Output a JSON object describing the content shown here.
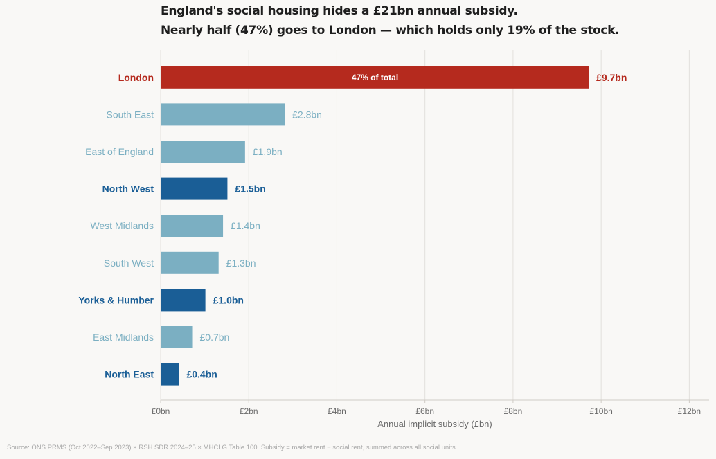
{
  "title": "England's social housing hides a £21bn annual subsidy.",
  "subtitle": "Nearly half (47%) goes to London — which holds only 19% of the stock.",
  "source": "Source: ONS PRMS (Oct 2022–Sep 2023) × RSH SDR 2024–25 × MHCLG Table 100. Subsidy = market rent − social rent, summed across all social units.",
  "colors": {
    "highlight_red": "#b52a1e",
    "highlight_blue": "#1a5e96",
    "muted": "#7bafc2",
    "grid": "#e2e0dc",
    "axis_text": "#6a6a6a"
  },
  "chart_data": {
    "type": "bar",
    "orientation": "horizontal",
    "categories": [
      "London",
      "South East",
      "East of England",
      "North West",
      "West Midlands",
      "South West",
      "Yorks & Humber",
      "East Midlands",
      "North East"
    ],
    "values": [
      9.7,
      2.8,
      1.9,
      1.5,
      1.4,
      1.3,
      1.0,
      0.7,
      0.4
    ],
    "value_labels": [
      "£9.7bn",
      "£2.8bn",
      "£1.9bn",
      "£1.5bn",
      "£1.4bn",
      "£1.3bn",
      "£1.0bn",
      "£0.7bn",
      "£0.4bn"
    ],
    "highlight": [
      "red",
      "muted",
      "muted",
      "blue",
      "muted",
      "muted",
      "blue",
      "muted",
      "blue"
    ],
    "bold_labels": [
      true,
      false,
      false,
      true,
      false,
      false,
      true,
      false,
      true
    ],
    "bar_annotation": {
      "category": "London",
      "text": "47% of total"
    },
    "xlabel": "Annual implicit subsidy (£bn)",
    "xlim": [
      0,
      12.45
    ],
    "xticks": [
      0,
      2,
      4,
      6,
      8,
      10,
      12
    ],
    "xtick_labels": [
      "£0bn",
      "£2bn",
      "£4bn",
      "£6bn",
      "£8bn",
      "£10bn",
      "£12bn"
    ],
    "grid": "vertical"
  }
}
